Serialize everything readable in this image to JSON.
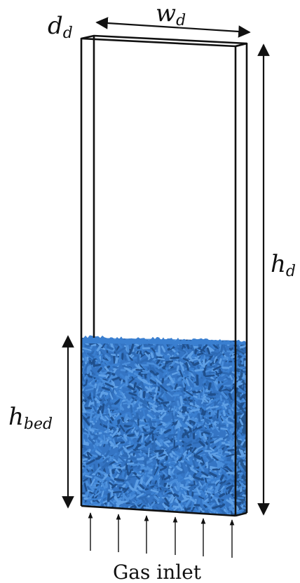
{
  "labels": {
    "depth": {
      "main": "d",
      "sub": "d"
    },
    "width": {
      "main": "w",
      "sub": "d"
    },
    "height": {
      "main": "h",
      "sub": "d"
    },
    "bed_height": {
      "main": "h",
      "sub": "bed"
    },
    "inlet": "Gas inlet"
  },
  "colors": {
    "particles": "#3a7fd0",
    "particles_dark": "#1f4f8c",
    "particles_light": "#5fa0e6",
    "outline": "#111111"
  },
  "icons": {
    "inlet_arrow": "arrow-up-icon",
    "dimension_arrow": "double-arrow-icon"
  }
}
